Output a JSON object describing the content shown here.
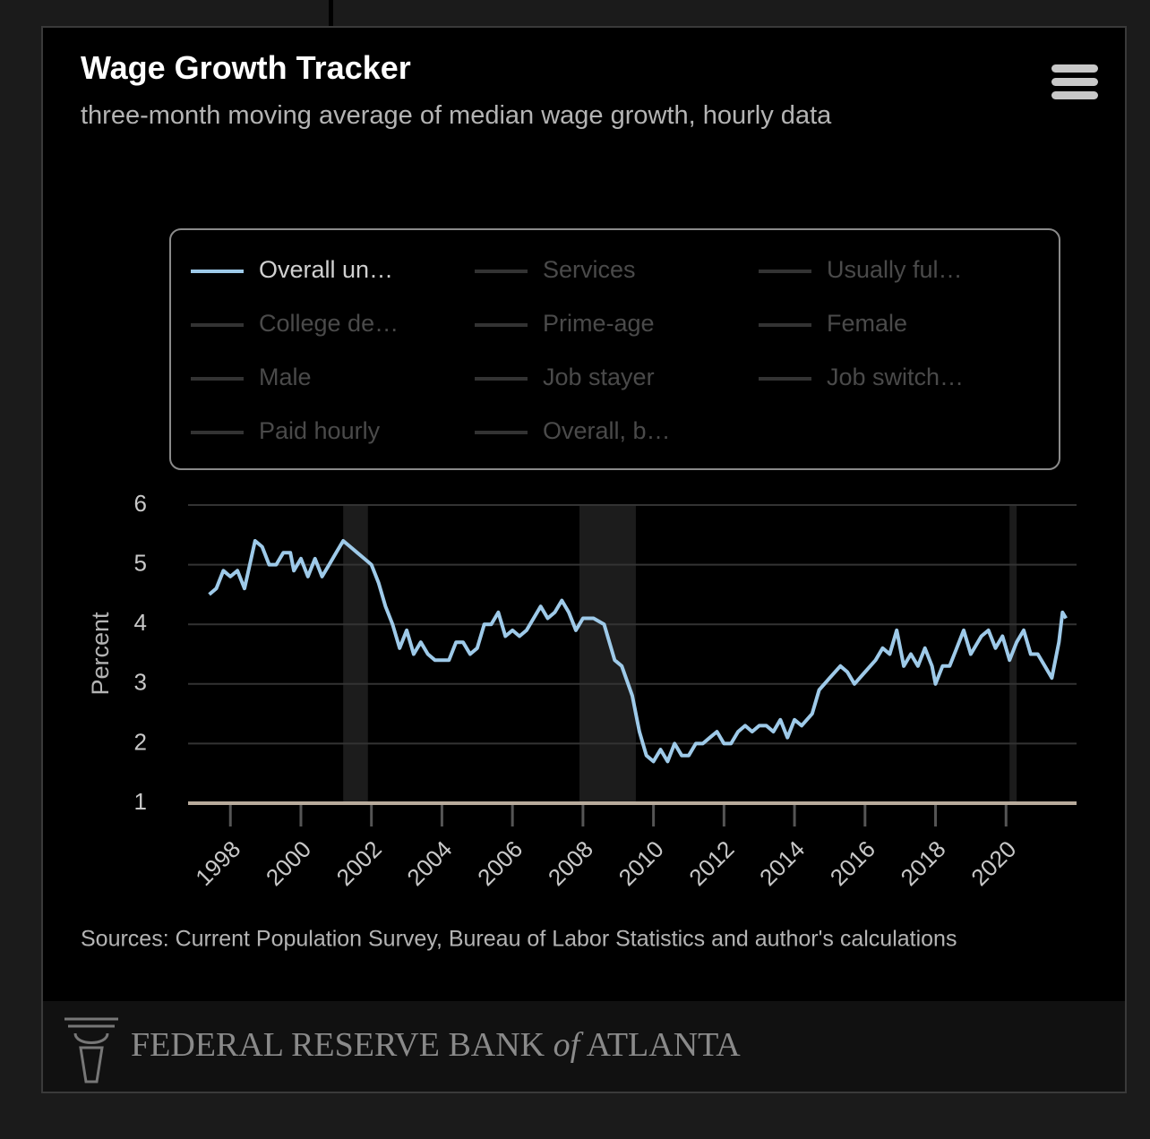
{
  "chart_data": {
    "type": "line",
    "title": "Wage Growth Tracker",
    "subtitle": "three-month moving average of median wage growth, hourly data",
    "y_label": "Percent",
    "source": "Sources: Current Population Survey, Bureau of Labor Statistics and author's calculations",
    "footer": {
      "prefix": "FEDERAL RESERVE BANK",
      "of": "of",
      "suffix": "ATLANTA"
    },
    "xlim": [
      1996.8,
      2022.0
    ],
    "xticks": [
      1998,
      2000,
      2002,
      2004,
      2006,
      2008,
      2010,
      2012,
      2014,
      2016,
      2018,
      2020
    ],
    "ylim": [
      1,
      6
    ],
    "yticks": [
      1,
      2,
      3,
      4,
      5,
      6
    ],
    "grid": true,
    "recessions": [
      [
        2001.2,
        2001.9
      ],
      [
        2007.9,
        2009.5
      ],
      [
        2020.1,
        2020.3
      ]
    ],
    "recession_color": "#1c1c1c",
    "legend_inactive": [
      "Services",
      "Usually ful…",
      "College de…",
      "Prime-age",
      "Female",
      "Male",
      "Job stayer",
      "Job switch…",
      "Paid hourly",
      "Overall, b…"
    ],
    "x": [
      1997.4,
      1997.6,
      1997.8,
      1998.0,
      1998.2,
      1998.4,
      1998.7,
      1998.9,
      1999.1,
      1999.3,
      1999.5,
      1999.7,
      1999.8,
      2000.0,
      2000.2,
      2000.4,
      2000.6,
      2000.8,
      2001.0,
      2001.2,
      2001.4,
      2001.6,
      2001.8,
      2002.0,
      2002.2,
      2002.4,
      2002.6,
      2002.8,
      2003.0,
      2003.2,
      2003.4,
      2003.6,
      2003.8,
      2004.0,
      2004.2,
      2004.4,
      2004.6,
      2004.8,
      2005.0,
      2005.2,
      2005.4,
      2005.6,
      2005.8,
      2006.0,
      2006.2,
      2006.4,
      2006.6,
      2006.8,
      2007.0,
      2007.2,
      2007.4,
      2007.6,
      2007.8,
      2008.0,
      2008.3,
      2008.6,
      2008.9,
      2009.1,
      2009.4,
      2009.6,
      2009.8,
      2010.0,
      2010.2,
      2010.4,
      2010.6,
      2010.8,
      2011.0,
      2011.2,
      2011.4,
      2011.6,
      2011.8,
      2012.0,
      2012.2,
      2012.4,
      2012.6,
      2012.8,
      2013.0,
      2013.2,
      2013.4,
      2013.6,
      2013.8,
      2014.0,
      2014.2,
      2014.5,
      2014.7,
      2015.0,
      2015.3,
      2015.5,
      2015.7,
      2016.0,
      2016.3,
      2016.5,
      2016.7,
      2016.9,
      2017.1,
      2017.3,
      2017.5,
      2017.7,
      2017.9,
      2018.0,
      2018.2,
      2018.4,
      2018.6,
      2018.8,
      2019.0,
      2019.3,
      2019.5,
      2019.7,
      2019.9,
      2020.1,
      2020.3,
      2020.5,
      2020.7,
      2020.9,
      2021.1,
      2021.3,
      2021.5,
      2021.6,
      2021.7
    ],
    "series": [
      {
        "name": "Overall un…",
        "color": "#9ecae9",
        "values": [
          4.5,
          4.6,
          4.9,
          4.8,
          4.9,
          4.6,
          5.4,
          5.3,
          5.0,
          5.0,
          5.2,
          5.2,
          4.9,
          5.1,
          4.8,
          5.1,
          4.8,
          5.0,
          5.2,
          5.4,
          5.3,
          5.2,
          5.1,
          5.0,
          4.7,
          4.3,
          4.0,
          3.6,
          3.9,
          3.5,
          3.7,
          3.5,
          3.4,
          3.4,
          3.4,
          3.7,
          3.7,
          3.5,
          3.6,
          4.0,
          4.0,
          4.2,
          3.8,
          3.9,
          3.8,
          3.9,
          4.1,
          4.3,
          4.1,
          4.2,
          4.4,
          4.2,
          3.9,
          4.1,
          4.1,
          4.0,
          3.4,
          3.3,
          2.8,
          2.2,
          1.8,
          1.7,
          1.9,
          1.7,
          2.0,
          1.8,
          1.8,
          2.0,
          2.0,
          2.1,
          2.2,
          2.0,
          2.0,
          2.2,
          2.3,
          2.2,
          2.3,
          2.3,
          2.2,
          2.4,
          2.1,
          2.4,
          2.3,
          2.5,
          2.9,
          3.1,
          3.3,
          3.2,
          3.0,
          3.2,
          3.4,
          3.6,
          3.5,
          3.9,
          3.3,
          3.5,
          3.3,
          3.6,
          3.3,
          3.0,
          3.3,
          3.3,
          3.6,
          3.9,
          3.5,
          3.8,
          3.9,
          3.6,
          3.8,
          3.4,
          3.7,
          3.9,
          3.5,
          3.5,
          3.3,
          3.1,
          3.7,
          4.2,
          4.1
        ]
      }
    ]
  }
}
